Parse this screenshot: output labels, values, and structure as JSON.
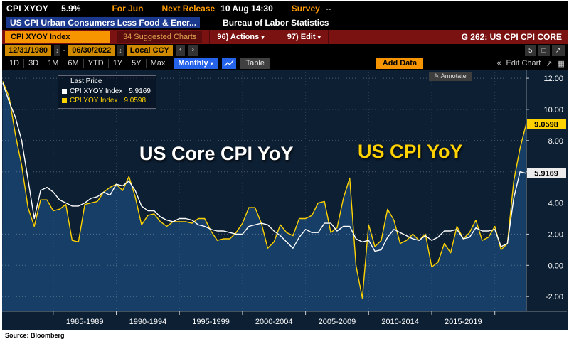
{
  "icons": {
    "chevron_down": "▾",
    "pencil": "✎",
    "updown": "↕",
    "prev": "‹",
    "next": "›",
    "double_chevron_left": "«",
    "expand": "↗",
    "grid": "▦",
    "window": "□"
  },
  "header": {
    "ticker": "CPI XYOY",
    "last": "5.9%",
    "for": "For Jun",
    "next_release_label": "Next Release",
    "next_release_value": "10 Aug 14:30",
    "survey_label": "Survey",
    "survey_value": "--",
    "description": "US CPI Urban Consumers Less Food & Ener...",
    "provider": "Bureau of Labor Statistics"
  },
  "command_bar": {
    "security": "CPI XYOY Index",
    "suggested_charts": "34 Suggested Charts",
    "actions": "96) Actions",
    "edit": "97) Edit",
    "screen_title": "G 262: US CPI CPI CORE"
  },
  "range_bar": {
    "date_from": "12/31/1980",
    "date_to": "06/30/2022",
    "currency": "Local CCY",
    "page_badge": "5"
  },
  "toolbar": {
    "ranges": [
      "1D",
      "3D",
      "1M",
      "6M",
      "YTD",
      "1Y",
      "5Y",
      "Max"
    ],
    "period": "Monthly",
    "table": "Table",
    "add_data": "Add Data",
    "edit_chart": "Edit Chart",
    "annotate": "Annotate"
  },
  "legend": {
    "title": "Last Price",
    "items": [
      {
        "label": "CPI XYOY Index",
        "value": "5.9169",
        "color": "#ffffff"
      },
      {
        "label": "CPI YOY Index",
        "value": "9.0598",
        "color": "#ffd200"
      }
    ]
  },
  "chart_annotations": {
    "core_label": "US Core CPI YoY",
    "core_color": "#ffffff",
    "headline_label": "US CPI YoY",
    "headline_color": "#ffd200"
  },
  "chart_data": {
    "type": "line",
    "title": "US CPI YoY vs US Core CPI YoY (1980-2022, monthly)",
    "x_range": [
      1980.95,
      2022.5
    ],
    "ylim": [
      -2.95,
      12.55
    ],
    "y_ticks": [
      -2,
      0,
      2,
      4,
      6,
      8,
      10,
      12
    ],
    "x_gridlines": [
      1985,
      1990,
      1995,
      2000,
      2005,
      2010,
      2015,
      2020
    ],
    "x_period_labels": [
      "1985-1989",
      "1990-1994",
      "1995-1999",
      "2000-2004",
      "2005-2009",
      "2010-2014",
      "2015-2019"
    ],
    "x_label_centers": [
      1987.5,
      1992.5,
      1997.5,
      2002.5,
      2007.5,
      2012.5,
      2017.5
    ],
    "legend_position": "top-left",
    "grid": "dotted",
    "colors": {
      "background": "#0d1f33",
      "area": "#173e66",
      "axis_text": "#ffffff"
    },
    "x": [
      1981,
      1981.5,
      1982,
      1982.5,
      1983,
      1983.5,
      1984,
      1984.5,
      1985,
      1985.5,
      1986,
      1986.5,
      1987,
      1987.5,
      1988,
      1988.5,
      1989,
      1989.5,
      1990,
      1990.5,
      1991,
      1991.5,
      1992,
      1992.5,
      1993,
      1993.5,
      1994,
      1994.5,
      1995,
      1995.5,
      1996,
      1996.5,
      1997,
      1997.5,
      1998,
      1998.5,
      1999,
      1999.5,
      2000,
      2000.5,
      2001,
      2001.5,
      2002,
      2002.5,
      2003,
      2003.5,
      2004,
      2004.5,
      2005,
      2005.5,
      2006,
      2006.5,
      2007,
      2007.5,
      2008,
      2008.5,
      2009,
      2009.5,
      2010,
      2010.5,
      2011,
      2011.5,
      2012,
      2012.5,
      2013,
      2013.5,
      2014,
      2014.5,
      2015,
      2015.5,
      2016,
      2016.5,
      2017,
      2017.5,
      2018,
      2018.5,
      2019,
      2019.5,
      2020,
      2020.5,
      2021,
      2021.5,
      2022,
      2022.5
    ],
    "series": [
      {
        "name": "CPI YOY Index",
        "color": "#ffd200",
        "fill": true,
        "last": 9.0598,
        "last_label": "9.0598",
        "badge_bg": "#ffd200",
        "values": [
          11.8,
          10.8,
          8.4,
          6.4,
          3.7,
          2.5,
          4.2,
          4.2,
          3.5,
          3.6,
          3.9,
          1.6,
          1.5,
          3.9,
          4.0,
          4.1,
          4.7,
          5.0,
          5.2,
          4.8,
          5.7,
          4.4,
          2.6,
          3.2,
          3.3,
          2.8,
          2.5,
          2.8,
          2.8,
          2.8,
          2.7,
          3.0,
          3.0,
          2.2,
          1.6,
          1.7,
          1.7,
          2.1,
          2.7,
          3.7,
          3.7,
          2.7,
          1.1,
          1.5,
          2.6,
          2.1,
          1.9,
          3.0,
          3.0,
          3.2,
          4.0,
          4.1,
          2.1,
          2.4,
          4.3,
          5.6,
          0.0,
          -2.1,
          2.6,
          1.2,
          1.6,
          3.6,
          2.9,
          1.4,
          1.6,
          2.0,
          1.6,
          2.0,
          -0.1,
          0.2,
          1.4,
          0.8,
          2.5,
          1.7,
          2.1,
          2.9,
          1.6,
          1.8,
          2.5,
          1.0,
          1.4,
          5.4,
          7.5,
          9.1
        ]
      },
      {
        "name": "CPI XYOY Index",
        "color": "#ffffff",
        "fill": false,
        "last": 5.9169,
        "last_label": "5.9169",
        "badge_bg": "#ececec",
        "values": [
          11.7,
          10.5,
          9.5,
          8.0,
          5.5,
          3.0,
          4.8,
          5.0,
          4.7,
          4.2,
          4.0,
          3.8,
          3.8,
          4.0,
          4.3,
          4.4,
          4.7,
          4.5,
          5.2,
          5.1,
          5.4,
          4.8,
          3.8,
          3.5,
          3.5,
          3.1,
          2.9,
          2.8,
          3.0,
          3.0,
          2.9,
          2.6,
          2.5,
          2.3,
          2.2,
          2.2,
          2.1,
          2.0,
          2.0,
          2.5,
          2.6,
          2.7,
          2.6,
          2.2,
          1.9,
          1.5,
          1.1,
          1.8,
          2.3,
          2.1,
          2.1,
          2.7,
          2.7,
          2.2,
          2.5,
          2.5,
          1.7,
          1.5,
          1.6,
          0.9,
          1.0,
          1.8,
          2.3,
          2.1,
          1.9,
          1.7,
          1.6,
          1.9,
          1.6,
          1.8,
          2.2,
          2.2,
          2.3,
          1.7,
          1.8,
          2.4,
          2.2,
          2.2,
          2.3,
          1.2,
          1.4,
          4.3,
          6.0,
          5.9
        ]
      }
    ]
  },
  "footer": {
    "source": "Source: Bloomberg"
  }
}
